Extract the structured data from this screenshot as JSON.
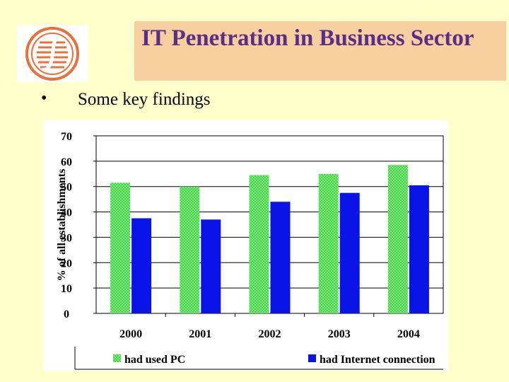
{
  "slide": {
    "title": "IT Penetration in Business Sector",
    "bullet_symbol": "•",
    "bullet_text": "Some key findings"
  },
  "logo": {
    "icon": "company-logo-icon",
    "color": "#e8703a"
  },
  "chart_data": {
    "type": "bar",
    "categories": [
      "2000",
      "2001",
      "2002",
      "2003",
      "2004"
    ],
    "series": [
      {
        "name": "had used PC",
        "values": [
          51.5,
          50,
          54.5,
          55,
          58.5
        ],
        "color": "#66e066"
      },
      {
        "name": "had Internet connection",
        "values": [
          37.5,
          37,
          44,
          47.5,
          50.5
        ],
        "color": "#0a14e6"
      }
    ],
    "ylabel": "% of all establishments",
    "ylim": [
      0,
      70
    ],
    "yticks": [
      0,
      10,
      20,
      30,
      40,
      50,
      60,
      70
    ],
    "grid": true,
    "legend": "bottom"
  }
}
